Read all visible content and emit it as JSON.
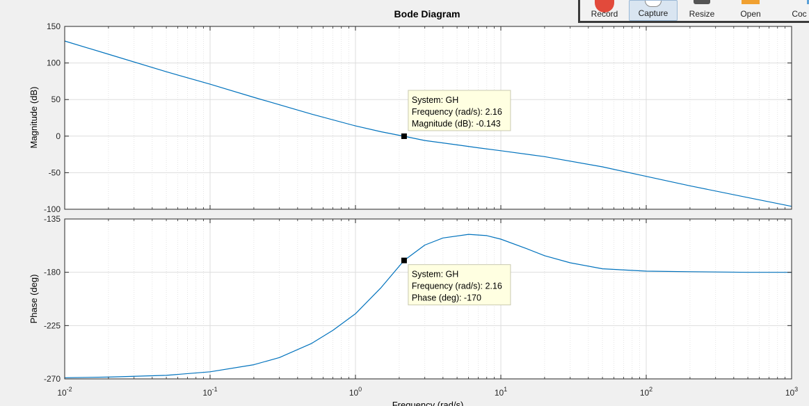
{
  "toolbar": {
    "record_label": "Record",
    "capture_label": "Capture",
    "resize_label": "Resize",
    "open_label": "Open",
    "code_label": "Coc"
  },
  "colors": {
    "line": "#0072bd",
    "grid": "#dddddd",
    "axis": "#262626",
    "tip_bg": "#ffffe1"
  },
  "chart_data": {
    "type": "line",
    "title": "Bode Diagram",
    "xlabel": "Frequency (rad/s)",
    "xscale": "log",
    "xlim": [
      0.01,
      1000
    ],
    "x_ticks": [
      0.01,
      0.1,
      1,
      10,
      100,
      1000
    ],
    "x_tick_labels": [
      "10",
      "10",
      "10",
      "10",
      "10",
      "10"
    ],
    "x_tick_exponents": [
      "-2",
      "-1",
      "0",
      "1",
      "2",
      "3"
    ],
    "grid": true,
    "subplots": [
      {
        "ylabel": "Magnitude (dB)",
        "ylim": [
          -100,
          150
        ],
        "yticks": [
          150,
          100,
          50,
          0,
          -50,
          -100
        ],
        "series": [
          {
            "x": [
              0.01,
              0.02,
              0.05,
              0.1,
              0.2,
              0.5,
              1,
              1.5,
              2.16,
              3,
              5,
              7,
              10,
              20,
              50,
              100,
              200,
              500,
              1000
            ],
            "y": [
              130,
              112,
              88,
              71,
              53,
              30,
              14,
              6,
              -0.143,
              -6,
              -12,
              -16,
              -20,
              -28,
              -42,
              -55,
              -68,
              -84,
              -96
            ]
          }
        ],
        "datatip": {
          "x": 2.16,
          "y": -0.143,
          "lines": [
            "System: GH",
            "Frequency (rad/s): 2.16",
            "Magnitude (dB): -0.143"
          ]
        }
      },
      {
        "ylabel": "Phase (deg)",
        "ylim": [
          -270,
          -135
        ],
        "yticks": [
          -135,
          -180,
          -225,
          -270
        ],
        "series": [
          {
            "x": [
              0.01,
              0.02,
              0.05,
              0.1,
              0.2,
              0.3,
              0.5,
              0.7,
              1,
              1.5,
              2.16,
              3,
              4,
              6,
              8,
              10,
              15,
              20,
              30,
              50,
              100,
              200,
              500,
              1000
            ],
            "y": [
              -269,
              -268.5,
              -267,
              -264,
              -258,
              -252,
              -240,
              -229,
              -215,
              -193,
              -170,
              -157,
              -151,
              -148,
              -149,
              -152,
              -160,
              -166,
              -172,
              -177,
              -179,
              -179.5,
              -180,
              -180
            ]
          }
        ],
        "datatip": {
          "x": 2.16,
          "y": -170,
          "lines": [
            "System: GH",
            "Frequency (rad/s): 2.16",
            "Phase (deg): -170"
          ]
        }
      }
    ]
  }
}
